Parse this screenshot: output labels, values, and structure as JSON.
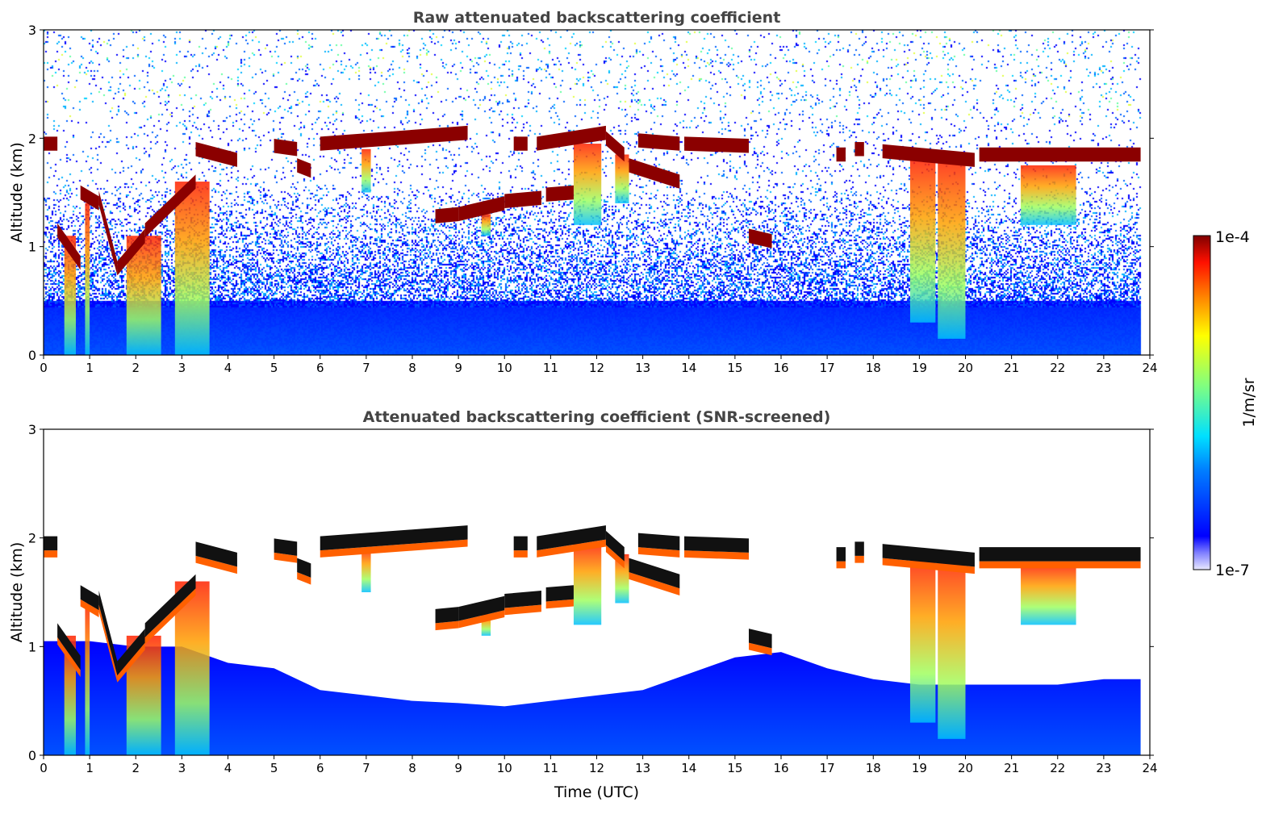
{
  "chart_data": [
    {
      "type": "heatmap",
      "title": "Raw attenuated backscattering coefficient",
      "xlabel": "",
      "ylabel": "Altitude (km)",
      "xlim": [
        0,
        24
      ],
      "ylim": [
        0,
        3
      ],
      "xticks": [
        "0",
        "1",
        "2",
        "3",
        "4",
        "5",
        "6",
        "7",
        "8",
        "9",
        "10",
        "11",
        "12",
        "13",
        "14",
        "15",
        "16",
        "17",
        "18",
        "19",
        "20",
        "21",
        "22",
        "23",
        "24"
      ],
      "yticks": [
        "0",
        "1",
        "2",
        "3"
      ],
      "screened": false
    },
    {
      "type": "heatmap",
      "title": "Attenuated backscattering coefficient (SNR-screened)",
      "xlabel": "Time (UTC)",
      "ylabel": "Altitude (km)",
      "xlim": [
        0,
        24
      ],
      "ylim": [
        0,
        3
      ],
      "xticks": [
        "0",
        "1",
        "2",
        "3",
        "4",
        "5",
        "6",
        "7",
        "8",
        "9",
        "10",
        "11",
        "12",
        "13",
        "14",
        "15",
        "16",
        "17",
        "18",
        "19",
        "20",
        "21",
        "22",
        "23",
        "24"
      ],
      "yticks": [
        "0",
        "1",
        "2",
        "3"
      ],
      "screened": true
    }
  ],
  "colorbar": {
    "label": "1/m/sr",
    "min_label": "1e-7",
    "max_label": "1e-4",
    "scale": "log",
    "colormap": "jet"
  },
  "features": {
    "data_end_hour": 23.8,
    "cloud_layers": [
      {
        "t0": 0.0,
        "t1": 0.3,
        "alt0": 1.95,
        "alt1": 1.95
      },
      {
        "t0": 0.3,
        "t1": 0.8,
        "alt0": 1.15,
        "alt1": 0.85
      },
      {
        "t0": 0.8,
        "t1": 1.2,
        "alt0": 1.5,
        "alt1": 1.4
      },
      {
        "t0": 1.2,
        "t1": 1.6,
        "alt0": 1.45,
        "alt1": 0.8
      },
      {
        "t0": 1.6,
        "t1": 2.2,
        "alt0": 0.8,
        "alt1": 1.1
      },
      {
        "t0": 2.2,
        "t1": 3.3,
        "alt0": 1.15,
        "alt1": 1.6
      },
      {
        "t0": 3.3,
        "t1": 4.2,
        "alt0": 1.9,
        "alt1": 1.8
      },
      {
        "t0": 5.0,
        "t1": 5.5,
        "alt0": 1.93,
        "alt1": 1.9
      },
      {
        "t0": 5.5,
        "t1": 5.8,
        "alt0": 1.75,
        "alt1": 1.7
      },
      {
        "t0": 6.0,
        "t1": 9.2,
        "alt0": 1.95,
        "alt1": 2.05
      },
      {
        "t0": 8.5,
        "t1": 9.0,
        "alt0": 1.28,
        "alt1": 1.3
      },
      {
        "t0": 9.0,
        "t1": 10.0,
        "alt0": 1.3,
        "alt1": 1.4
      },
      {
        "t0": 10.0,
        "t1": 10.8,
        "alt0": 1.42,
        "alt1": 1.45
      },
      {
        "t0": 10.9,
        "t1": 11.5,
        "alt0": 1.48,
        "alt1": 1.5
      },
      {
        "t0": 10.2,
        "t1": 10.5,
        "alt0": 1.95,
        "alt1": 1.95
      },
      {
        "t0": 10.7,
        "t1": 12.2,
        "alt0": 1.95,
        "alt1": 2.05
      },
      {
        "t0": 12.2,
        "t1": 12.6,
        "alt0": 2.0,
        "alt1": 1.85
      },
      {
        "t0": 12.7,
        "t1": 13.8,
        "alt0": 1.75,
        "alt1": 1.6
      },
      {
        "t0": 12.9,
        "t1": 13.8,
        "alt0": 1.98,
        "alt1": 1.95
      },
      {
        "t0": 13.9,
        "t1": 15.3,
        "alt0": 1.95,
        "alt1": 1.93
      },
      {
        "t0": 15.3,
        "t1": 15.8,
        "alt0": 1.1,
        "alt1": 1.05
      },
      {
        "t0": 17.2,
        "t1": 17.4,
        "alt0": 1.85,
        "alt1": 1.85
      },
      {
        "t0": 17.6,
        "t1": 17.8,
        "alt0": 1.9,
        "alt1": 1.9
      },
      {
        "t0": 18.2,
        "t1": 20.2,
        "alt0": 1.88,
        "alt1": 1.8
      },
      {
        "t0": 20.3,
        "t1": 23.8,
        "alt0": 1.85,
        "alt1": 1.85
      }
    ],
    "fallstreaks": [
      {
        "t0": 0.45,
        "t1": 0.7,
        "top": 1.1,
        "bottom": 0.0
      },
      {
        "t0": 0.9,
        "t1": 1.0,
        "top": 1.4,
        "bottom": 0.0
      },
      {
        "t0": 1.8,
        "t1": 2.55,
        "top": 1.1,
        "bottom": 0.0
      },
      {
        "t0": 2.85,
        "t1": 3.6,
        "top": 1.6,
        "bottom": 0.0
      },
      {
        "t0": 6.9,
        "t1": 7.1,
        "top": 1.9,
        "bottom": 1.5
      },
      {
        "t0": 9.5,
        "t1": 9.7,
        "top": 1.3,
        "bottom": 1.1
      },
      {
        "t0": 11.5,
        "t1": 12.1,
        "top": 1.95,
        "bottom": 1.2
      },
      {
        "t0": 12.4,
        "t1": 12.7,
        "top": 1.85,
        "bottom": 1.4
      },
      {
        "t0": 18.8,
        "t1": 19.35,
        "top": 1.8,
        "bottom": 0.3
      },
      {
        "t0": 19.4,
        "t1": 20.0,
        "top": 1.8,
        "bottom": 0.15
      },
      {
        "t0": 21.2,
        "t1": 22.4,
        "top": 1.75,
        "bottom": 1.2
      }
    ],
    "screened_signal_top": [
      [
        0,
        1.05
      ],
      [
        1,
        1.05
      ],
      [
        2,
        1.0
      ],
      [
        3,
        1.0
      ],
      [
        4,
        0.85
      ],
      [
        5,
        0.8
      ],
      [
        6,
        0.6
      ],
      [
        7,
        0.55
      ],
      [
        8,
        0.5
      ],
      [
        9,
        0.48
      ],
      [
        10,
        0.45
      ],
      [
        11,
        0.5
      ],
      [
        12,
        0.55
      ],
      [
        13,
        0.6
      ],
      [
        14,
        0.75
      ],
      [
        15,
        0.9
      ],
      [
        16,
        0.95
      ],
      [
        17,
        0.8
      ],
      [
        18,
        0.7
      ],
      [
        19,
        0.65
      ],
      [
        20,
        0.65
      ],
      [
        21,
        0.65
      ],
      [
        22,
        0.65
      ],
      [
        23,
        0.7
      ],
      [
        23.8,
        0.7
      ]
    ]
  }
}
